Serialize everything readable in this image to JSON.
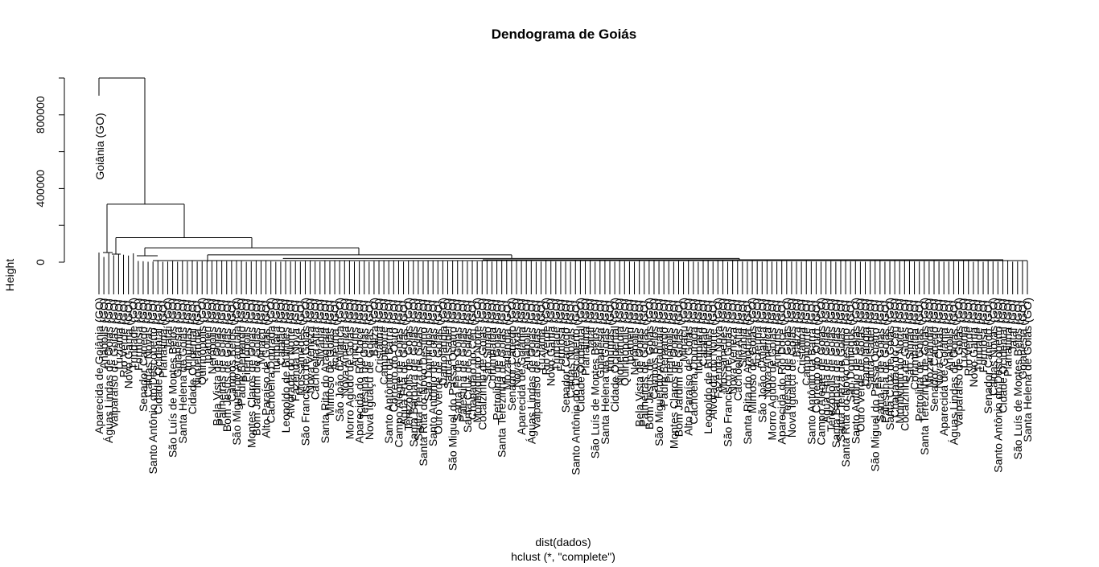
{
  "chart_data": {
    "type": "dendrogram",
    "title": "Dendograma de Goiás",
    "ylabel": "Height",
    "xlabel": "dist(dados)",
    "subtitle": "hclust (*, \"complete\")",
    "ylim": [
      0,
      1100000
    ],
    "y_ticks": [
      0,
      400000,
      800000
    ],
    "y_tick_labels": [
      "0",
      "400000",
      "800000"
    ],
    "outlier_label": "Goiânia (GO)",
    "leaves": [
      "Aparecida de Goiânia (GO)",
      "Anápolis (GO)",
      "Águas Lindas de Goiás (GO)",
      "Valparaíso de Goiás (GO)",
      "Luziânia (GO)",
      "Rio Verde (GO)",
      "Novo Gama (GO)",
      "Trindade (GO)",
      "Formosa (GO)",
      "Senador Canedo (GO)",
      "Caldas Novas (GO)",
      "Santo Antônio do Descoberto (GO)",
      "Cidade Ocidental (GO)",
      "Planaltina (GO)",
      "Jataí (GO)",
      "São Luís de Montes Belos (GO)",
      "Goianésia (GO)",
      "Santa Helena de Goiás (GO)",
      "Inhumas (GO)",
      "Cidade Ocidental (GO)",
      "Niquelândia (GO)",
      "Quirinópolis (GO)",
      "Ipameri (GO)",
      "Nerópolis (GO)",
      "Bela Vista de Goiás (GO)",
      "Palmeiras de Goiás (GO)",
      "Bom Jesus de Goiás (GO)",
      "Campos Belos (GO)",
      "São Miguel do Araguaia (GO)",
      "Padre Bernardo (GO)",
      "Pirenópolis (GO)",
      "Montes Claros de Goiás (GO)",
      "Bom Jardim de Goiás (GO)",
      "Minaçu (GO)",
      "Alto Paraíso de Goiás (GO)",
      "Cachoeira Dourada (GO)",
      "Itumbiara (GO)",
      "Catalão (GO)",
      "Leopoldo de Bulhões (GO)",
      "Alvorada do Norte (GO)",
      "Fazenda Nova (GO)",
      "Mossâmedes (GO)",
      "São Francisco de Goiás (GO)",
      "Nova Veneza (GO)",
      "Cachoeira Alta (GO)",
      "Silvânia (GO)",
      "Santa Rita do Araguaia (GO)",
      "Mimoso de Goiás (GO)",
      "Acreúna (GO)",
      "São João d'Aliança (GO)",
      "Nova América (GO)",
      "Morro Agudo de Goiás (GO)",
      "Anicuns (GO)",
      "Aparecida do Rio Doce (GO)",
      "Teresina de Goiás (GO)",
      "Nova Iguaçu de Goiás (GO)",
      "Baliza (GO)",
      "Cristalina (GO)",
      "Campinorte (GO)",
      "Santo Antônio da Barra (GO)",
      "Córrego do Ouro (GO)",
      "Campo Alegre de Goiás (GO)",
      "Água Fria de Goiás (GO)",
      "Terezópolis de Goiás (GO)",
      "Santa Bárbara de Goiás (GO)",
      "Santa Tereza de Goiás (GO)",
      "Santa Rita do Novo Destino (GO)",
      "São Domingos (GO)",
      "Santo Antônio de Goiás (GO)",
      "Ouro Verde de Goiás (GO)",
      "Damolândia (GO)",
      "Santa Isabel (GO)",
      "São Miguel do Passa Quatro (GO)",
      "Santa Fé de Goiás (GO)",
      "Palestina de Goiás (GO)",
      "Santa Cruz de Goiás (GO)",
      "Chapadão do Céu (GO)",
      "Montividiu do Norte (GO)",
      "Cocalzinho de Goiás (GO)",
      "São Simão (GO)",
      "Corumbaíba (GO)",
      "Petrolina de Goiás (GO)",
      "Santa Terezinha de Goiás (GO)",
      "Mozarlândia (GO)",
      "Senador Canedo (GO)",
      "Nova Crixás (GO)"
    ],
    "merges": [
      {
        "name": "root",
        "height": 1000000
      },
      {
        "name": "cluster-a",
        "height": 315000
      },
      {
        "name": "cluster-b",
        "height": 133000
      },
      {
        "name": "cluster-c",
        "height": 78000
      },
      {
        "name": "cluster-d",
        "height": 40000
      },
      {
        "name": "cluster-e",
        "height": 20000
      }
    ]
  }
}
